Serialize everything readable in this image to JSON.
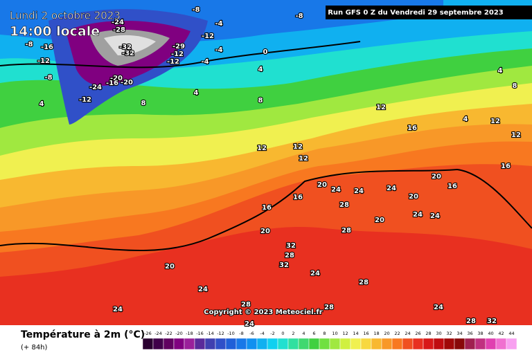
{
  "header": {
    "date": "Lundi 2 octobre 2023",
    "time": "14:00 locale",
    "run": "Run GFS 0 Z du Vendredi 29 septembre 2023"
  },
  "copyright": "Copyright © 2023 Meteociel.fr",
  "map_labels": [
    -8,
    -8,
    -4,
    -12,
    -4,
    -4,
    0,
    4,
    4,
    8,
    -24,
    -28,
    -32,
    -32,
    -29,
    -12,
    -12,
    -20,
    -24,
    -16,
    -20,
    -12,
    -16,
    -12,
    -8,
    -8,
    4,
    8,
    12,
    12,
    12,
    16,
    16,
    20,
    20,
    24,
    24,
    20,
    24,
    24,
    28,
    28,
    24,
    20,
    24,
    20,
    24,
    20,
    16,
    16,
    16,
    12,
    12,
    8,
    4,
    4,
    12,
    24,
    28,
    32,
    28,
    24,
    28,
    32,
    28,
    32,
    24,
    28
  ],
  "legend": {
    "title": "Température à 2m (°C)",
    "subtitle": "(+ 84h)",
    "values": [
      -26,
      -24,
      -22,
      -20,
      -18,
      -16,
      -14,
      -12,
      -10,
      -8,
      -6,
      -4,
      -2,
      0,
      2,
      4,
      6,
      8,
      10,
      12,
      14,
      16,
      18,
      20,
      22,
      24,
      26,
      28,
      30,
      32,
      34,
      36,
      38,
      40,
      42,
      44
    ],
    "colors": [
      "#2a0030",
      "#40004a",
      "#600060",
      "#800080",
      "#9a209a",
      "#5a2a9a",
      "#4040b0",
      "#3050c8",
      "#2060d8",
      "#1878e8",
      "#1090f0",
      "#10b0f0",
      "#10d0f0",
      "#20e0d0",
      "#30e0a0",
      "#40d870",
      "#40d040",
      "#70e040",
      "#a0e840",
      "#d0f040",
      "#f0f050",
      "#f8d840",
      "#f8b830",
      "#f89828",
      "#f87820",
      "#f05020",
      "#e83020",
      "#d81818",
      "#c00c10",
      "#a00808",
      "#880808",
      "#a02050",
      "#c03080",
      "#e040b0",
      "#f070d0",
      "#f8a0f0"
    ]
  }
}
